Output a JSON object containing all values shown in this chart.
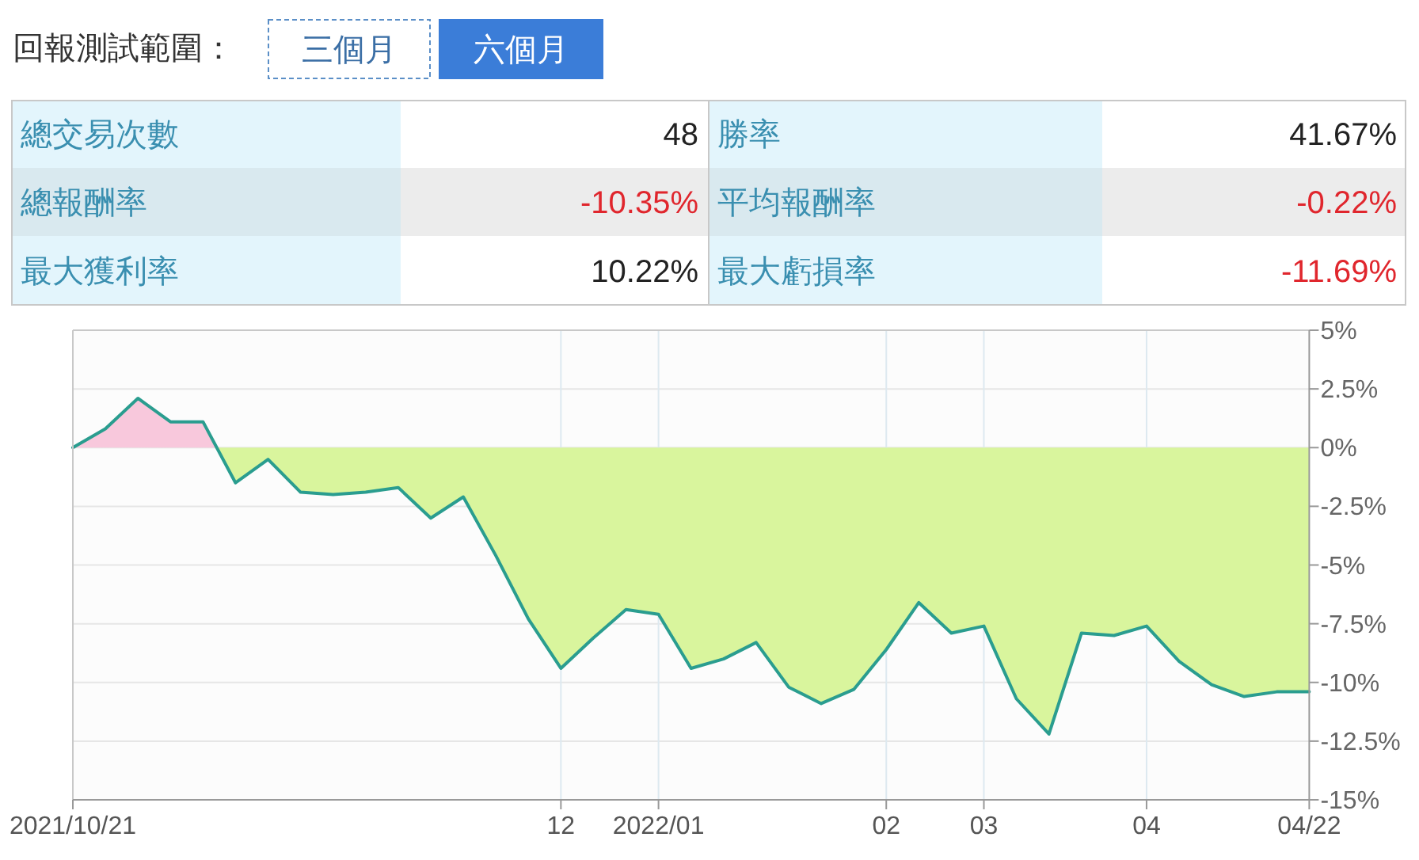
{
  "chart_data": [
    {
      "type": "other",
      "title": "回報測試範圍：",
      "annotations": [
        "三個月",
        "六個月",
        "總交易次數",
        "48",
        "勝率",
        "41.67%",
        "總報酬率",
        "-10.35%",
        "平均報酬率",
        "-0.22%",
        "最大獲利率",
        "10.22%",
        "最大虧損率",
        "-11.69%"
      ],
      "colors": [
        "#3a6ea5",
        "#ffffff",
        "#3a8fb0",
        "#222222",
        "#3a8fb0",
        "#222222",
        "#3a8fb0",
        "#e0262d",
        "#3a8fb0",
        "#e0262d",
        "#3a8fb0",
        "#222222",
        "#3a8fb0",
        "#e0262d"
      ]
    },
    {
      "type": "area",
      "categories": [
        "2021/10/21",
        null,
        null,
        null,
        null,
        null,
        null,
        null,
        null,
        null,
        null,
        null,
        null,
        null,
        null,
        "12",
        null,
        null,
        "2022/01",
        null,
        null,
        null,
        null,
        null,
        null,
        "02",
        null,
        null,
        "03",
        null,
        null,
        null,
        null,
        "04",
        null,
        null,
        null,
        null,
        "04/22"
      ],
      "series": [
        {
          "type": "area",
          "color": "#2a9d8f",
          "colors": [
            "#f8c8dc",
            "#f8c8dc",
            "#f8c8dc",
            "#f8c8dc",
            "#f8c8dc",
            "#d9f59d",
            "#d9f59d",
            "#d9f59d",
            "#d9f59d",
            "#d9f59d",
            "#d9f59d",
            "#d9f59d",
            "#d9f59d",
            "#d9f59d",
            "#d9f59d",
            "#d9f59d",
            "#d9f59d",
            "#d9f59d",
            "#d9f59d",
            "#d9f59d",
            "#d9f59d",
            "#d9f59d",
            "#d9f59d",
            "#d9f59d",
            "#d9f59d",
            "#d9f59d",
            "#d9f59d",
            "#d9f59d",
            "#d9f59d",
            "#d9f59d",
            "#d9f59d",
            "#d9f59d",
            "#d9f59d",
            "#d9f59d",
            "#d9f59d",
            "#d9f59d",
            "#d9f59d",
            "#d9f59d",
            "#d9f59d"
          ],
          "values": [
            0,
            0.8,
            2.1,
            1.1,
            1.1,
            -1.5,
            -0.5,
            -1.9,
            -2.0,
            -1.9,
            -1.7,
            -3.0,
            -2.1,
            -4.6,
            -7.3,
            -9.4,
            -8.1,
            -6.9,
            -7.1,
            -9.4,
            -9.0,
            -8.3,
            -10.2,
            -10.9,
            -10.3,
            -8.6,
            -6.6,
            -7.9,
            -7.6,
            -10.7,
            -12.2,
            -7.9,
            -8.0,
            -7.6,
            -9.1,
            -10.1,
            -10.6,
            -10.4,
            -10.4
          ]
        }
      ],
      "ylim": [
        -15,
        5
      ],
      "yticks": [
        {
          "value": 5,
          "label": "5%"
        },
        {
          "value": 2.5,
          "label": "2.5%"
        },
        {
          "value": 0,
          "label": "0%"
        },
        {
          "value": -2.5,
          "label": "-2.5%"
        },
        {
          "value": -5,
          "label": "-5%"
        },
        {
          "value": -7.5,
          "label": "-7.5%"
        },
        {
          "value": -10,
          "label": "-10%"
        },
        {
          "value": -12.5,
          "label": "-12.5%"
        },
        {
          "value": -15,
          "label": "-15%"
        }
      ],
      "grid": true
    }
  ]
}
